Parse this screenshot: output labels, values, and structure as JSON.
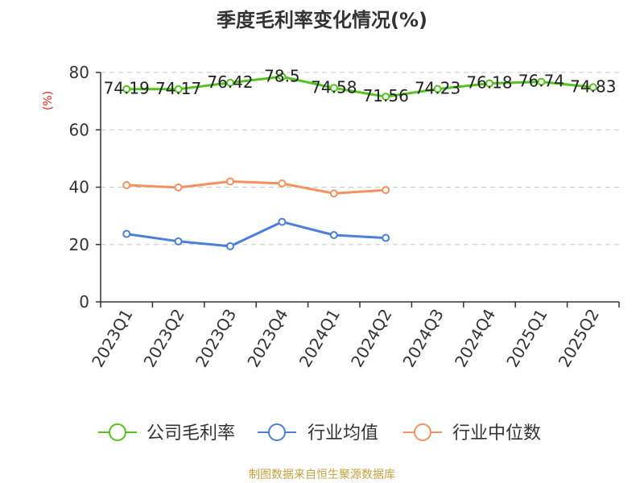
{
  "chart_data": {
    "type": "line",
    "title": "季度毛利率变化情况(%)",
    "ylabel": "(%)",
    "xlabel": "",
    "ylim": [
      0,
      80
    ],
    "yticks": [
      0,
      20,
      40,
      60,
      80
    ],
    "grid": true,
    "legend_position": "bottom",
    "categories": [
      "2023Q1",
      "2023Q2",
      "2023Q3",
      "2023Q4",
      "2024Q1",
      "2024Q2",
      "2024Q3",
      "2024Q4",
      "2025Q1",
      "2025Q2"
    ],
    "series": [
      {
        "name": "公司毛利率",
        "color": "#52c41a",
        "values": [
          74.19,
          74.17,
          76.42,
          78.5,
          74.58,
          71.56,
          74.23,
          76.18,
          76.74,
          74.83
        ],
        "labels": [
          "74.19",
          "74.17",
          "76.42",
          "78.5",
          "74.58",
          "71.56",
          "74.23",
          "76.18",
          "76.74",
          "74.83"
        ],
        "show_labels": true
      },
      {
        "name": "行业均值",
        "color": "#4a7fdc",
        "values": [
          23.7,
          21.1,
          19.4,
          27.9,
          23.3,
          22.3,
          null,
          null,
          null,
          null
        ],
        "show_labels": false
      },
      {
        "name": "行业中位数",
        "color": "#f7905e",
        "values": [
          40.7,
          39.9,
          42.0,
          41.3,
          37.8,
          39.0,
          null,
          null,
          null,
          null
        ],
        "show_labels": false
      }
    ],
    "source_note": "制图数据来自恒生聚源数据库",
    "colors": {
      "axis": "#333333",
      "grid": "#c8c8c8",
      "ylabel": "#e02020",
      "source_note": "#c8a040"
    }
  }
}
